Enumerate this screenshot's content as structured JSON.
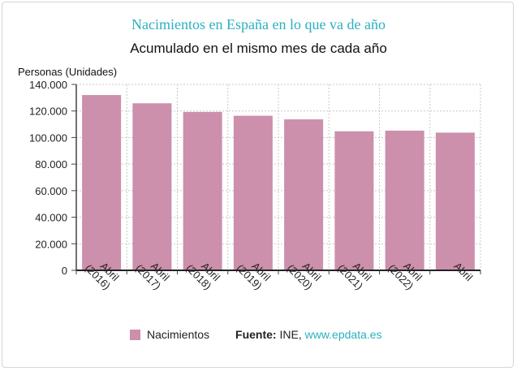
{
  "chart_data": {
    "type": "bar",
    "title": "Nacimientos en España en lo que va de año",
    "subtitle": "Acumulado en el mismo mes de cada año",
    "ylabel": "Personas (Unidades)",
    "xlabel": "",
    "categories": [
      "Abril (2016)",
      "Abril (2017)",
      "Abril (2018)",
      "Abril (2019)",
      "Abril (2020)",
      "Abril (2021)",
      "Abril (2022)",
      "Abril"
    ],
    "series": [
      {
        "name": "Nacimientos",
        "values": [
          132000,
          125800,
          119300,
          116400,
          113700,
          104700,
          105200,
          103700
        ]
      }
    ],
    "ylim": [
      0,
      140000
    ],
    "yticks": [
      0,
      20000,
      40000,
      60000,
      80000,
      100000,
      120000,
      140000
    ],
    "ytick_labels": [
      "0",
      "20.000",
      "40.000",
      "60.000",
      "80.000",
      "100.000",
      "120.000",
      "140.000"
    ],
    "grid": true,
    "legend_position": "bottom",
    "bar_color": "#cc8fac"
  },
  "legend": {
    "label": "Nacimientos",
    "source_label": "Fuente:",
    "source_text": " INE, ",
    "source_link": "www.epdata.es"
  }
}
